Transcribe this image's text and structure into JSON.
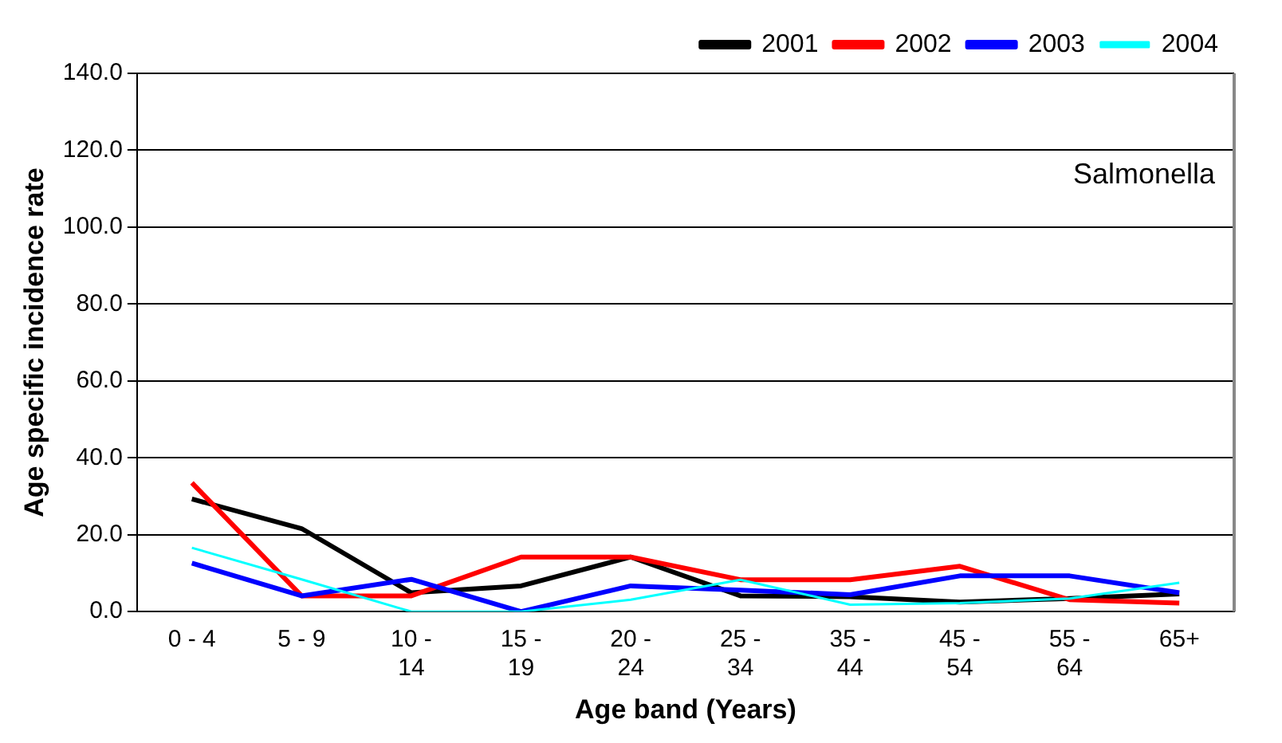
{
  "chart_data": {
    "type": "line",
    "xlabel": "Age band (Years)",
    "ylabel": "Age specific incidence rate",
    "annotations": [
      "Salmonella"
    ],
    "categories": [
      "0 - 4",
      "5 - 9",
      "10 - 14",
      "15 - 19",
      "20 - 24",
      "25 - 34",
      "35 - 44",
      "45 - 54",
      "55 - 64",
      "65+"
    ],
    "series": [
      {
        "name": "2001",
        "color": "#000000",
        "values": [
          29.3,
          21.6,
          4.9,
          6.7,
          14.2,
          4.1,
          3.9,
          2.5,
          3.4,
          4.6
        ]
      },
      {
        "name": "2002",
        "color": "#ff0000",
        "values": [
          33.5,
          4.1,
          4.1,
          14.2,
          14.2,
          8.3,
          8.3,
          11.8,
          3.1,
          2.2
        ]
      },
      {
        "name": "2003",
        "color": "#0000ff",
        "values": [
          12.6,
          4.1,
          8.4,
          0,
          6.7,
          5.6,
          4.4,
          9.3,
          9.3,
          4.9
        ]
      },
      {
        "name": "2004",
        "color": "#00ffff",
        "values": [
          16.6,
          8.4,
          0,
          0,
          3.1,
          8.3,
          1.8,
          2.2,
          3.4,
          7.5
        ]
      }
    ],
    "ylim": [
      0,
      140
    ],
    "yticks": [
      {
        "value": 0,
        "label": "0.0"
      },
      {
        "value": 20,
        "label": "20.0"
      },
      {
        "value": 40,
        "label": "40.0"
      },
      {
        "value": 60,
        "label": "60.0"
      },
      {
        "value": 80,
        "label": "80.0"
      },
      {
        "value": 100,
        "label": "100.0"
      },
      {
        "value": 120,
        "label": "120.0"
      },
      {
        "value": 140,
        "label": "140.0"
      }
    ],
    "grid": "y",
    "legend": "top right",
    "marker": "none",
    "line_style": "solid"
  }
}
